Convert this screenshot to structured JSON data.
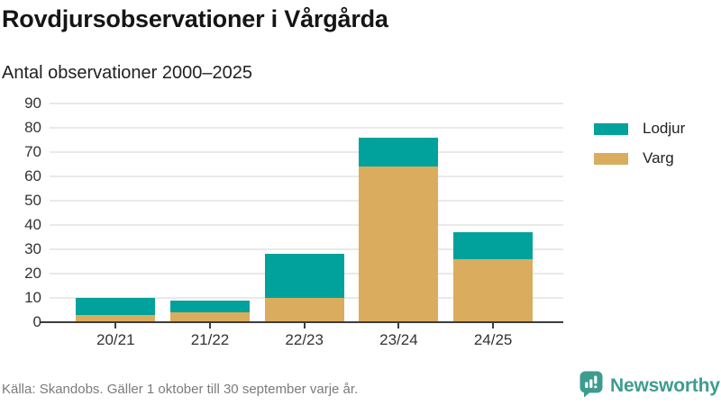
{
  "title": "Rovdjursobservationer i Vårgårda",
  "subtitle": "Antal observationer 2000–2025",
  "source": "Källa: Skandobs. Gäller 1 oktober till 30 september varje år.",
  "brand": {
    "name": "Newsworthy",
    "logo_icon": "newsworthy-speech-bubble-bar-chart-icon",
    "color": "#3d9c8f"
  },
  "legend": [
    {
      "label": "Lodjur",
      "color": "#00a29b"
    },
    {
      "label": "Varg",
      "color": "#d9ac5e"
    }
  ],
  "chart_data": {
    "type": "bar",
    "stacked": true,
    "title": "Rovdjursobservationer i Vårgårda",
    "subtitle": "Antal observationer 2000–2025",
    "categories": [
      "20/21",
      "21/22",
      "22/23",
      "23/24",
      "24/25"
    ],
    "series": [
      {
        "name": "Varg",
        "color": "#d9ac5e",
        "values": [
          3,
          4,
          10,
          64,
          26
        ]
      },
      {
        "name": "Lodjur",
        "color": "#00a29b",
        "values": [
          7,
          5,
          18,
          12,
          11
        ]
      }
    ],
    "totals": [
      10,
      9,
      28,
      76,
      37
    ],
    "xlabel": "",
    "ylabel": "",
    "ylim": [
      0,
      90
    ],
    "yticks": [
      0,
      10,
      20,
      30,
      40,
      50,
      60,
      70,
      80,
      90
    ],
    "grid": true,
    "gridline_color": "#e9e9e9",
    "axis_color": "#3c3c3c",
    "legend_position": "right"
  }
}
